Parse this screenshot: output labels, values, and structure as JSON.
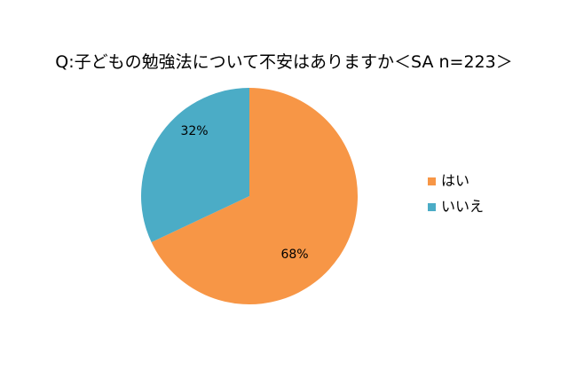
{
  "chart_data": {
    "type": "pie",
    "title": "Q:子どもの勉強法について不安はありますか＜SA n=223＞",
    "categories": [
      "はい",
      "いいえ"
    ],
    "values": [
      68,
      32
    ],
    "data_labels": [
      "68%",
      "32%"
    ],
    "colors": [
      "#F79646",
      "#4BACC6"
    ],
    "start": "12 o'clock",
    "direction": "clockwise",
    "legend_position": "right"
  }
}
